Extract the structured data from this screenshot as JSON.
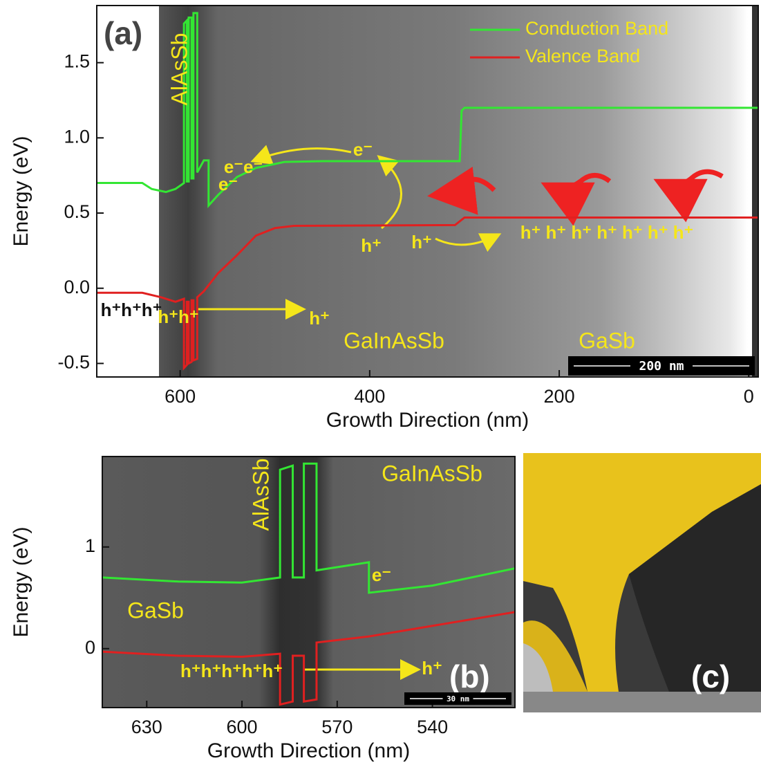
{
  "chart_data": [
    {
      "type": "line",
      "panel_label": "(a)",
      "x_label": "Growth Direction (nm)",
      "y_label": "Energy (eV)",
      "xlim": [
        688,
        -10
      ],
      "ylim": [
        -0.59,
        1.88
      ],
      "xticks": [
        600,
        400,
        200,
        0
      ],
      "yticks": [
        -0.5,
        {
          "value": 0,
          "label": "0.0"
        },
        0.5,
        {
          "value": 1,
          "label": "1.0"
        },
        1.5
      ],
      "legend": "top-right",
      "scale_bar": "200 nm",
      "annotations": [
        "AlAsSb",
        "GaInAsSb",
        "GaSb",
        "e⁻",
        "h⁺",
        "h⁺",
        "h⁺   h⁺   h⁺   h⁺   h⁺   h⁺   h⁺",
        "h⁺h⁺h⁺",
        "h⁺h⁺",
        "h⁺",
        "e⁻e⁻",
        "e⁻"
      ],
      "series": [
        {
          "name": "Conduction Band",
          "color": "#33e633",
          "x": [
            688,
            640,
            630,
            615,
            605,
            596,
            596,
            593,
            593,
            591,
            591,
            588,
            588,
            586,
            586,
            582,
            582,
            575,
            570,
            570,
            560,
            540,
            520,
            490,
            450,
            305,
            303,
            300,
            -10
          ],
          "values": [
            0.7,
            0.7,
            0.66,
            0.64,
            0.66,
            0.7,
            1.76,
            1.78,
            0.71,
            0.71,
            1.8,
            1.8,
            0.73,
            0.73,
            1.83,
            1.83,
            0.77,
            0.85,
            0.85,
            0.55,
            0.62,
            0.74,
            0.8,
            0.84,
            0.845,
            0.845,
            1.18,
            1.2,
            1.2
          ]
        },
        {
          "name": "Valence Band",
          "color": "#e02020",
          "x": [
            688,
            640,
            620,
            605,
            596,
            596,
            593,
            593,
            591,
            591,
            588,
            588,
            586,
            586,
            582,
            582,
            575,
            560,
            540,
            520,
            500,
            480,
            310,
            300,
            -10
          ],
          "values": [
            -0.03,
            -0.03,
            -0.06,
            -0.09,
            -0.07,
            -0.53,
            -0.51,
            -0.09,
            -0.09,
            -0.5,
            -0.49,
            -0.08,
            -0.08,
            -0.48,
            -0.47,
            -0.06,
            -0.02,
            0.1,
            0.22,
            0.35,
            0.4,
            0.415,
            0.42,
            0.47,
            0.47
          ]
        }
      ]
    },
    {
      "type": "line",
      "panel_label": "(b)",
      "x_label": "Growth Direction (nm)",
      "y_label": "Energy (eV)",
      "xlim": [
        644,
        514
      ],
      "ylim": [
        -0.58,
        1.89
      ],
      "xticks": [
        630,
        600,
        570,
        540
      ],
      "yticks": [
        0,
        1
      ],
      "scale_bar": "30 nm",
      "annotations": [
        "GaInAsSb",
        "AlAsSb",
        "GaSb",
        "e⁻",
        "h⁺h⁺h⁺h⁺h⁺",
        "h⁺"
      ],
      "series": [
        {
          "name": "Conduction Band",
          "color": "#33e633",
          "x": [
            644,
            620,
            600,
            588,
            588,
            584,
            584,
            580.5,
            580.5,
            576.5,
            576.5,
            560,
            560,
            540,
            514
          ],
          "values": [
            0.7,
            0.66,
            0.65,
            0.7,
            1.76,
            1.8,
            0.7,
            0.7,
            1.82,
            1.82,
            0.77,
            0.85,
            0.55,
            0.62,
            0.79
          ]
        },
        {
          "name": "Valence Band",
          "color": "#e02020",
          "x": [
            644,
            620,
            600,
            588,
            588,
            584,
            584,
            580.5,
            580.5,
            576.5,
            576.5,
            560,
            514
          ],
          "values": [
            -0.03,
            -0.07,
            -0.08,
            -0.05,
            -0.55,
            -0.52,
            -0.07,
            -0.07,
            -0.52,
            -0.5,
            0.06,
            0.12,
            0.36
          ]
        }
      ]
    }
  ],
  "panel_c": {
    "label": "(c)"
  }
}
